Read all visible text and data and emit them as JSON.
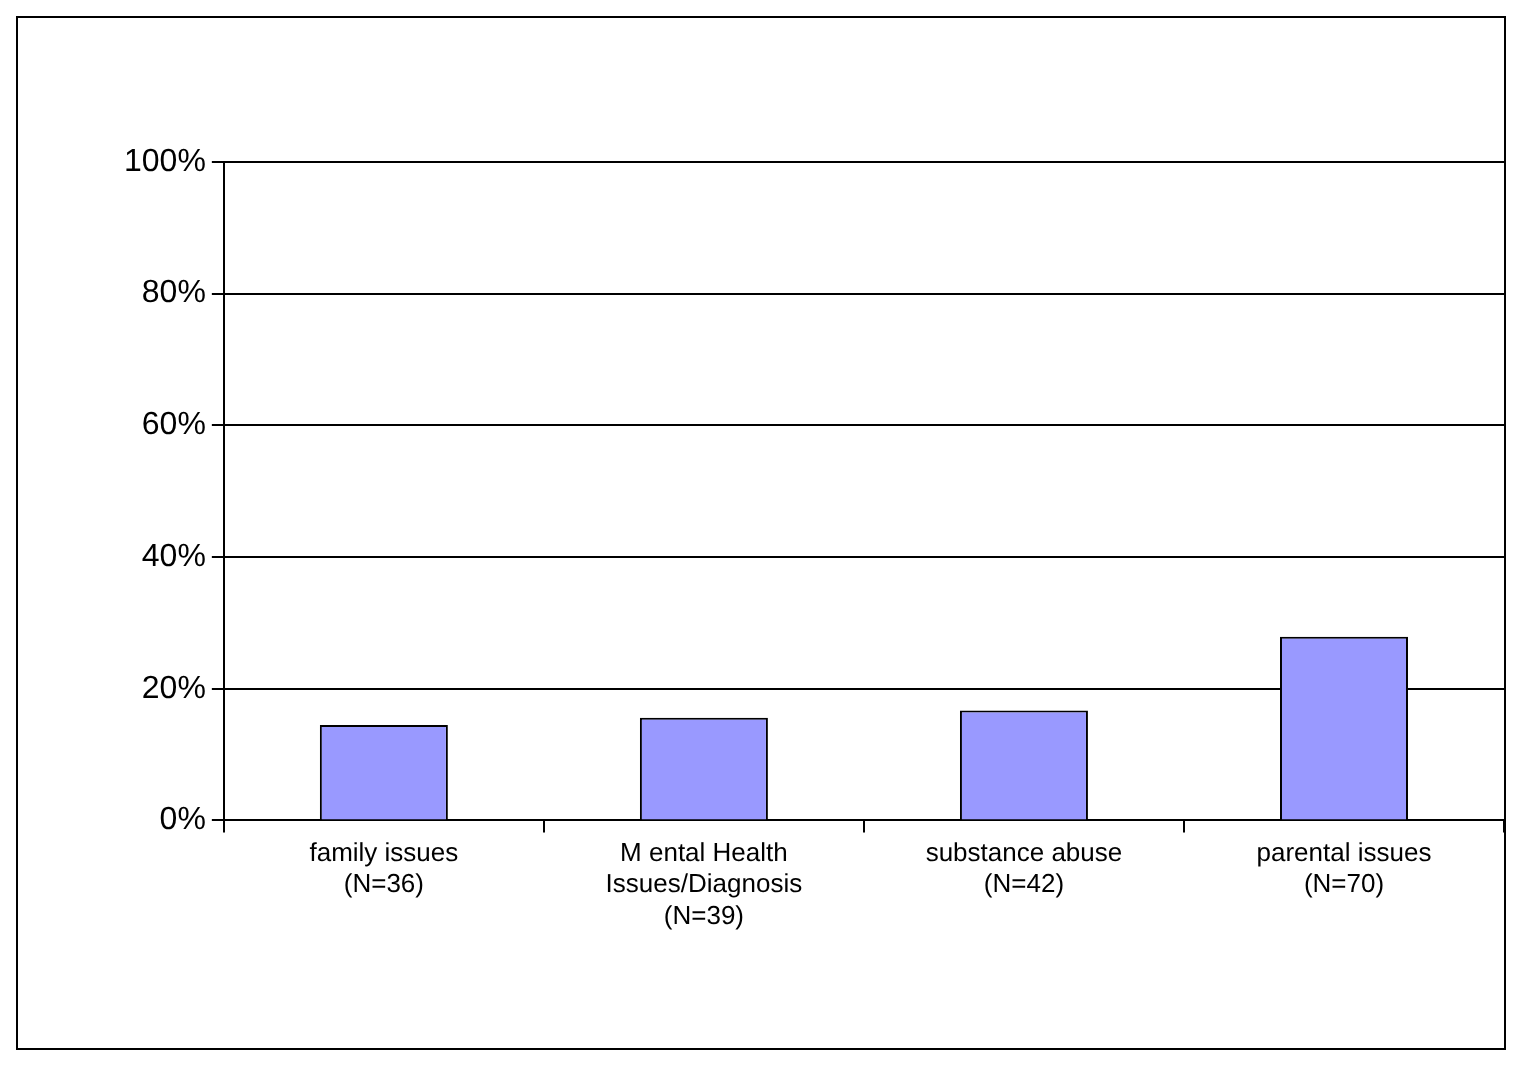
{
  "chart_data": {
    "type": "bar",
    "categories": [
      "family issues\n(N=36)",
      "M ental Health\nIssues/Diagnosis\n(N=39)",
      "substance abuse\n(N=42)",
      "parental issues\n(N=70)"
    ],
    "values": [
      14.5,
      15.6,
      16.7,
      27.9
    ],
    "color": "#9999ff",
    "ylim": [
      0,
      100
    ],
    "yticks": [
      {
        "value": 0,
        "label": "0%"
      },
      {
        "value": 20,
        "label": "20%"
      },
      {
        "value": 40,
        "label": "40%"
      },
      {
        "value": 60,
        "label": "60%"
      },
      {
        "value": 80,
        "label": "80%"
      },
      {
        "value": 100,
        "label": "100%"
      }
    ],
    "grid": "y",
    "legend": false
  }
}
